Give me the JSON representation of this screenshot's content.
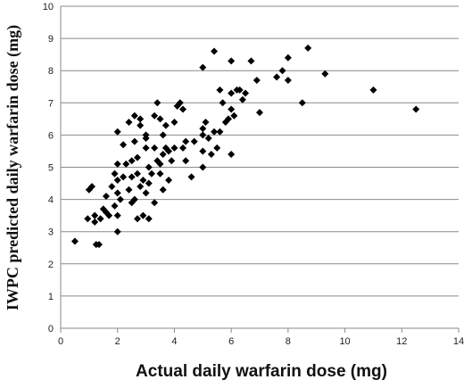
{
  "chart_data": {
    "type": "scatter",
    "title": "",
    "xlabel": "Actual daily warfarin dose (mg)",
    "ylabel": "IWPC predicted daily warfarin dose (mg)",
    "xlim": [
      0,
      14
    ],
    "ylim": [
      0,
      10
    ],
    "x_ticks": [
      0,
      2,
      4,
      6,
      8,
      10,
      12,
      14
    ],
    "y_ticks": [
      0,
      1,
      2,
      3,
      4,
      5,
      6,
      7,
      8,
      9,
      10
    ],
    "grid": "horizontal",
    "legend": "none",
    "marker": "diamond",
    "marker_color": "#000000",
    "points": [
      [
        0.5,
        2.7
      ],
      [
        0.95,
        3.4
      ],
      [
        1.0,
        4.3
      ],
      [
        1.1,
        4.4
      ],
      [
        1.2,
        3.5
      ],
      [
        1.2,
        3.3
      ],
      [
        1.25,
        2.6
      ],
      [
        1.35,
        2.6
      ],
      [
        1.4,
        3.4
      ],
      [
        1.5,
        3.7
      ],
      [
        1.6,
        3.6
      ],
      [
        1.6,
        4.1
      ],
      [
        1.7,
        3.5
      ],
      [
        1.8,
        4.4
      ],
      [
        1.9,
        4.8
      ],
      [
        1.9,
        3.8
      ],
      [
        2.0,
        3.0
      ],
      [
        2.0,
        3.5
      ],
      [
        2.0,
        4.2
      ],
      [
        2.0,
        4.6
      ],
      [
        2.0,
        5.1
      ],
      [
        2.0,
        6.1
      ],
      [
        2.1,
        4.0
      ],
      [
        2.2,
        4.7
      ],
      [
        2.2,
        5.7
      ],
      [
        2.3,
        5.1
      ],
      [
        2.4,
        4.3
      ],
      [
        2.4,
        6.4
      ],
      [
        2.5,
        3.9
      ],
      [
        2.5,
        4.7
      ],
      [
        2.5,
        5.2
      ],
      [
        2.6,
        4.0
      ],
      [
        2.6,
        5.8
      ],
      [
        2.6,
        6.6
      ],
      [
        2.7,
        3.4
      ],
      [
        2.7,
        4.8
      ],
      [
        2.7,
        5.3
      ],
      [
        2.8,
        4.4
      ],
      [
        2.8,
        6.3
      ],
      [
        2.8,
        6.5
      ],
      [
        2.9,
        3.5
      ],
      [
        2.9,
        4.6
      ],
      [
        3.0,
        4.2
      ],
      [
        3.0,
        5.6
      ],
      [
        3.0,
        5.9
      ],
      [
        3.0,
        6.0
      ],
      [
        3.1,
        3.4
      ],
      [
        3.1,
        4.5
      ],
      [
        3.1,
        5.0
      ],
      [
        3.2,
        4.8
      ],
      [
        3.3,
        3.9
      ],
      [
        3.3,
        5.6
      ],
      [
        3.3,
        6.6
      ],
      [
        3.4,
        5.2
      ],
      [
        3.4,
        7.0
      ],
      [
        3.5,
        4.8
      ],
      [
        3.5,
        5.1
      ],
      [
        3.5,
        6.5
      ],
      [
        3.6,
        4.3
      ],
      [
        3.6,
        5.4
      ],
      [
        3.6,
        6.0
      ],
      [
        3.7,
        5.6
      ],
      [
        3.7,
        6.3
      ],
      [
        3.8,
        4.6
      ],
      [
        3.8,
        5.5
      ],
      [
        3.9,
        5.2
      ],
      [
        4.0,
        5.6
      ],
      [
        4.0,
        6.4
      ],
      [
        4.1,
        6.9
      ],
      [
        4.2,
        7.0
      ],
      [
        4.3,
        5.6
      ],
      [
        4.3,
        6.8
      ],
      [
        4.4,
        5.2
      ],
      [
        4.4,
        5.8
      ],
      [
        4.6,
        4.7
      ],
      [
        4.7,
        5.8
      ],
      [
        5.0,
        5.0
      ],
      [
        5.0,
        5.5
      ],
      [
        5.0,
        6.0
      ],
      [
        5.0,
        6.2
      ],
      [
        5.0,
        8.1
      ],
      [
        5.1,
        6.4
      ],
      [
        5.2,
        5.9
      ],
      [
        5.3,
        5.4
      ],
      [
        5.4,
        6.1
      ],
      [
        5.4,
        8.6
      ],
      [
        5.5,
        5.6
      ],
      [
        5.6,
        6.1
      ],
      [
        5.6,
        7.4
      ],
      [
        5.7,
        7.0
      ],
      [
        5.8,
        6.4
      ],
      [
        5.9,
        6.5
      ],
      [
        6.0,
        6.8
      ],
      [
        6.0,
        7.3
      ],
      [
        6.0,
        8.3
      ],
      [
        6.0,
        5.4
      ],
      [
        6.1,
        6.6
      ],
      [
        6.2,
        7.4
      ],
      [
        6.3,
        7.4
      ],
      [
        6.4,
        7.1
      ],
      [
        6.5,
        7.3
      ],
      [
        6.7,
        8.3
      ],
      [
        6.9,
        7.7
      ],
      [
        7.0,
        6.7
      ],
      [
        7.6,
        7.8
      ],
      [
        7.8,
        8.0
      ],
      [
        8.0,
        8.4
      ],
      [
        8.0,
        7.7
      ],
      [
        8.5,
        7.0
      ],
      [
        8.7,
        8.7
      ],
      [
        9.3,
        7.9
      ],
      [
        11.0,
        7.4
      ],
      [
        12.5,
        6.8
      ]
    ]
  }
}
